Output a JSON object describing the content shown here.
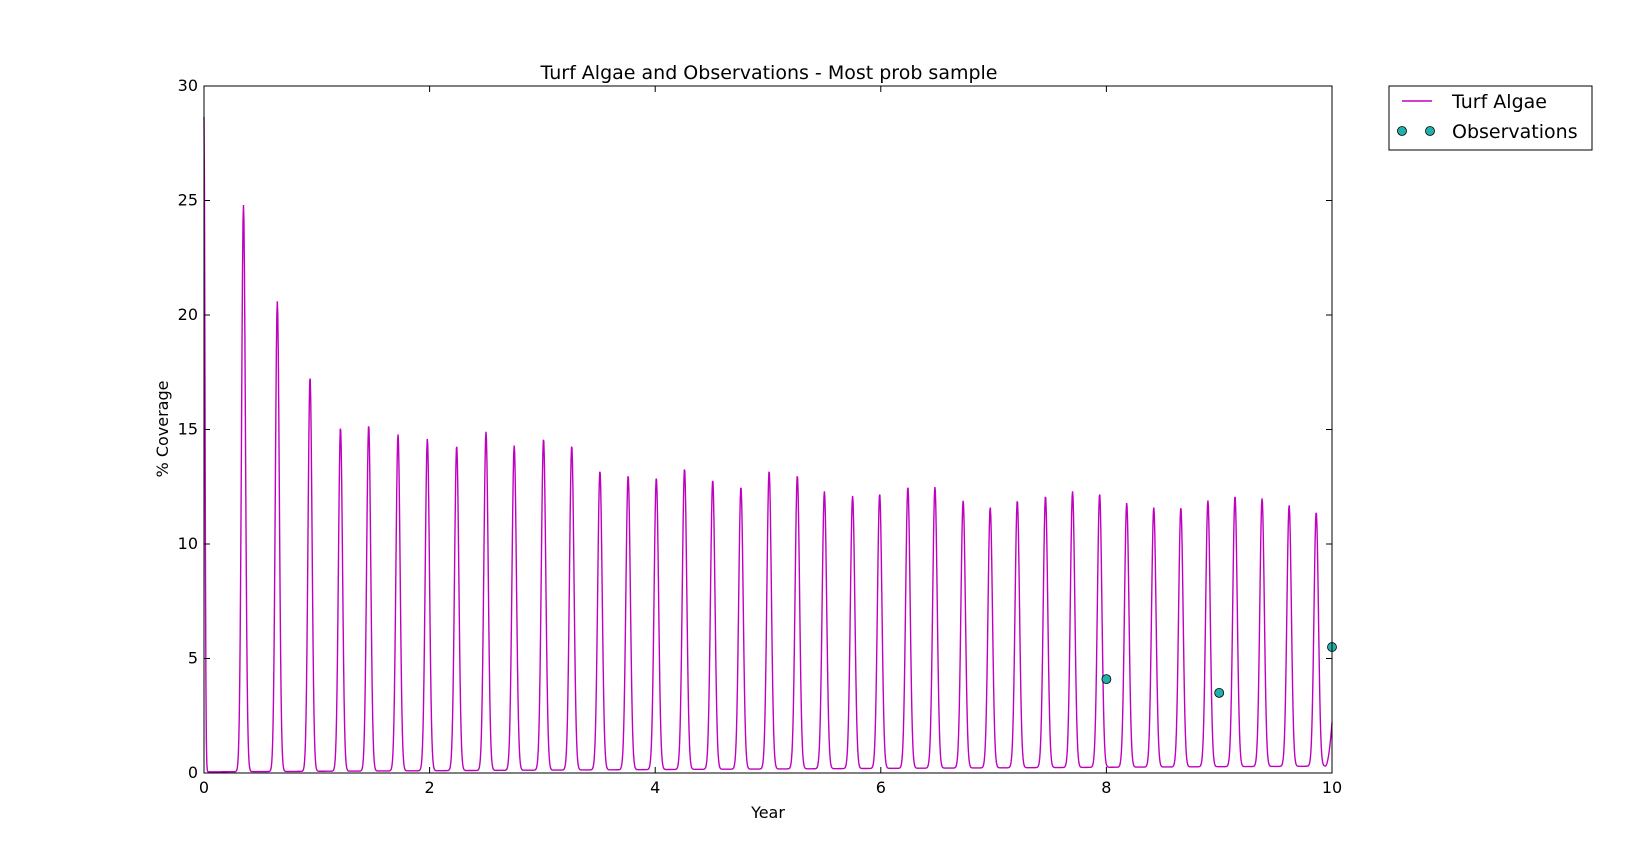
{
  "chart_data": {
    "type": "line",
    "title": "Turf Algae and Observations - Most prob sample",
    "xlabel": "Year",
    "ylabel": "% Coverage",
    "xlim": [
      0,
      10
    ],
    "ylim": [
      0,
      30
    ],
    "x_ticks": [
      "0",
      "2",
      "4",
      "6",
      "8",
      "10"
    ],
    "y_ticks": [
      "0",
      "5",
      "10",
      "15",
      "20",
      "25",
      "30"
    ],
    "grid": false,
    "legend_position": "outside-top-right",
    "series": [
      {
        "name": "Turf Algae",
        "style": "line",
        "color": "#bf00bf",
        "start_value": 28.6,
        "end_value": 2.2,
        "peaks": [
          {
            "x": 0.35,
            "y": 24.8
          },
          {
            "x": 0.65,
            "y": 20.6
          },
          {
            "x": 0.94,
            "y": 17.3
          },
          {
            "x": 1.21,
            "y": 15.1
          },
          {
            "x": 1.46,
            "y": 15.2
          },
          {
            "x": 1.72,
            "y": 14.8
          },
          {
            "x": 1.98,
            "y": 14.6
          },
          {
            "x": 2.24,
            "y": 14.3
          },
          {
            "x": 2.5,
            "y": 14.9
          },
          {
            "x": 2.75,
            "y": 14.3
          },
          {
            "x": 3.01,
            "y": 14.6
          },
          {
            "x": 3.26,
            "y": 14.3
          },
          {
            "x": 3.51,
            "y": 13.2
          },
          {
            "x": 3.76,
            "y": 13.0
          },
          {
            "x": 4.01,
            "y": 12.9
          },
          {
            "x": 4.26,
            "y": 13.3
          },
          {
            "x": 4.51,
            "y": 12.8
          },
          {
            "x": 4.76,
            "y": 12.5
          },
          {
            "x": 5.01,
            "y": 13.2
          },
          {
            "x": 5.26,
            "y": 13.0
          },
          {
            "x": 5.5,
            "y": 12.3
          },
          {
            "x": 5.75,
            "y": 12.1
          },
          {
            "x": 5.99,
            "y": 12.2
          },
          {
            "x": 6.24,
            "y": 12.5
          },
          {
            "x": 6.48,
            "y": 12.5
          },
          {
            "x": 6.73,
            "y": 11.9
          },
          {
            "x": 6.97,
            "y": 11.6
          },
          {
            "x": 7.21,
            "y": 11.9
          },
          {
            "x": 7.46,
            "y": 12.1
          },
          {
            "x": 7.7,
            "y": 12.3
          },
          {
            "x": 7.94,
            "y": 12.2
          },
          {
            "x": 8.18,
            "y": 11.8
          },
          {
            "x": 8.42,
            "y": 11.6
          },
          {
            "x": 8.66,
            "y": 11.6
          },
          {
            "x": 8.9,
            "y": 11.9
          },
          {
            "x": 9.14,
            "y": 12.1
          },
          {
            "x": 9.38,
            "y": 12.0
          },
          {
            "x": 9.62,
            "y": 11.7
          },
          {
            "x": 9.86,
            "y": 11.4
          }
        ]
      },
      {
        "name": "Observations",
        "style": "markers",
        "color": "#20b2aa",
        "x": [
          8,
          9,
          10
        ],
        "y": [
          4.1,
          3.5,
          5.5
        ]
      }
    ]
  }
}
